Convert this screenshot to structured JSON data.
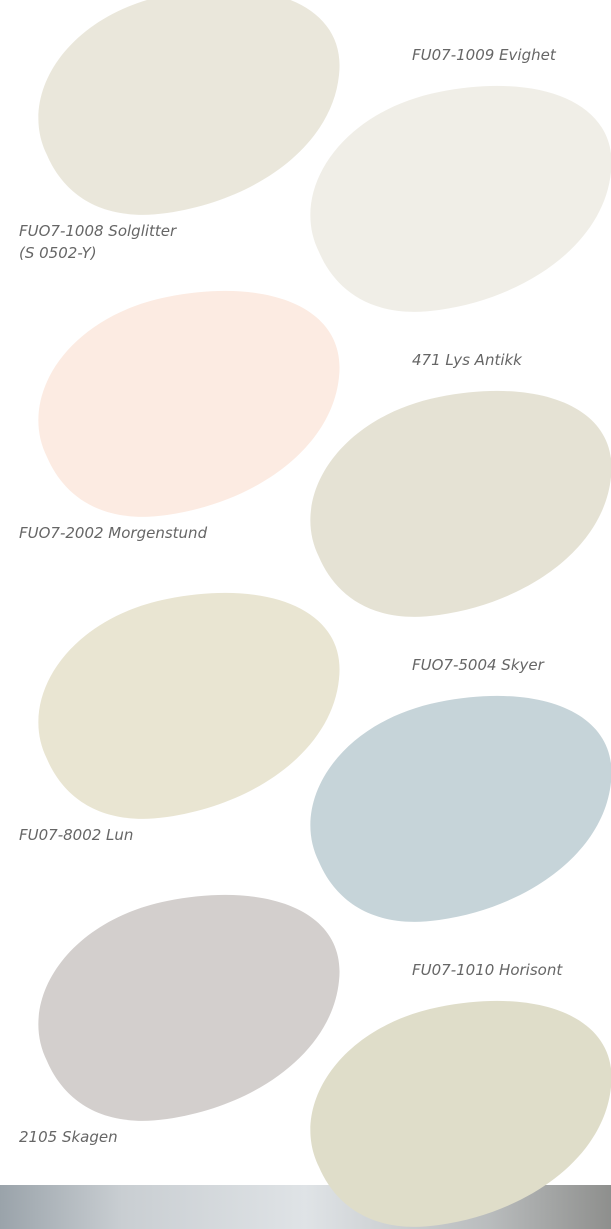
{
  "swatches": [
    {
      "lines": [
        "FUO7-1008 Solglitter",
        "(S 0502-Y)"
      ],
      "color": "#eae7db"
    },
    {
      "lines": [
        "FU07-1009 Evighet"
      ],
      "color": "#f0eee7"
    },
    {
      "lines": [
        "FUO7-2002 Morgenstund"
      ],
      "color": "#fcebe2"
    },
    {
      "lines": [
        "471 Lys Antikk"
      ],
      "color": "#e5e2d4"
    },
    {
      "lines": [
        "FU07-8002 Lun"
      ],
      "color": "#e9e5d2"
    },
    {
      "lines": [
        "FUO7-5004 Skyer"
      ],
      "color": "#c6d4d9"
    },
    {
      "lines": [
        "2105 Skagen"
      ],
      "color": "#d3cfcd"
    },
    {
      "lines": [
        "FU07-1010 Horisont"
      ],
      "color": "#dfddc9"
    }
  ]
}
